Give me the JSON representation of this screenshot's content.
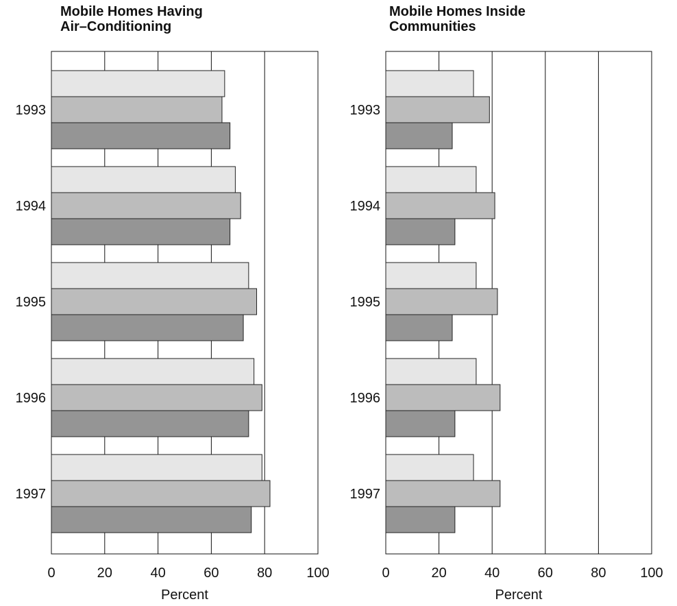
{
  "chart_data": [
    {
      "type": "bar",
      "orientation": "horizontal",
      "title": "Mobile Homes Having\nAir–Conditioning",
      "categories": [
        "1993",
        "1994",
        "1995",
        "1996",
        "1997"
      ],
      "series": [
        {
          "values": [
            65,
            69,
            74,
            76,
            79
          ],
          "color": "#e6e6e6"
        },
        {
          "values": [
            64,
            71,
            77,
            79,
            82
          ],
          "color": "#bcbcbc"
        },
        {
          "values": [
            67,
            67,
            72,
            74,
            75
          ],
          "color": "#959595"
        }
      ],
      "xlabel": "Percent",
      "xlim": [
        0,
        100
      ],
      "xticks": [
        0,
        20,
        40,
        60,
        80,
        100
      ],
      "tick_labels": [
        "0",
        "20",
        "40",
        "60",
        "80",
        "100"
      ],
      "grid": true
    },
    {
      "type": "bar",
      "orientation": "horizontal",
      "title": "Mobile Homes Inside\nCommunities",
      "categories": [
        "1993",
        "1994",
        "1995",
        "1996",
        "1997"
      ],
      "series": [
        {
          "values": [
            33,
            34,
            34,
            34,
            33
          ],
          "color": "#e6e6e6"
        },
        {
          "values": [
            39,
            41,
            42,
            43,
            43
          ],
          "color": "#bcbcbc"
        },
        {
          "values": [
            25,
            26,
            25,
            26,
            26
          ],
          "color": "#959595"
        }
      ],
      "xlabel": "Percent",
      "xlim": [
        0,
        100
      ],
      "xticks": [
        0,
        20,
        40,
        60,
        80,
        100
      ],
      "tick_labels": [
        "0",
        "20",
        "40",
        "60",
        "80",
        "100"
      ],
      "grid": true
    }
  ]
}
